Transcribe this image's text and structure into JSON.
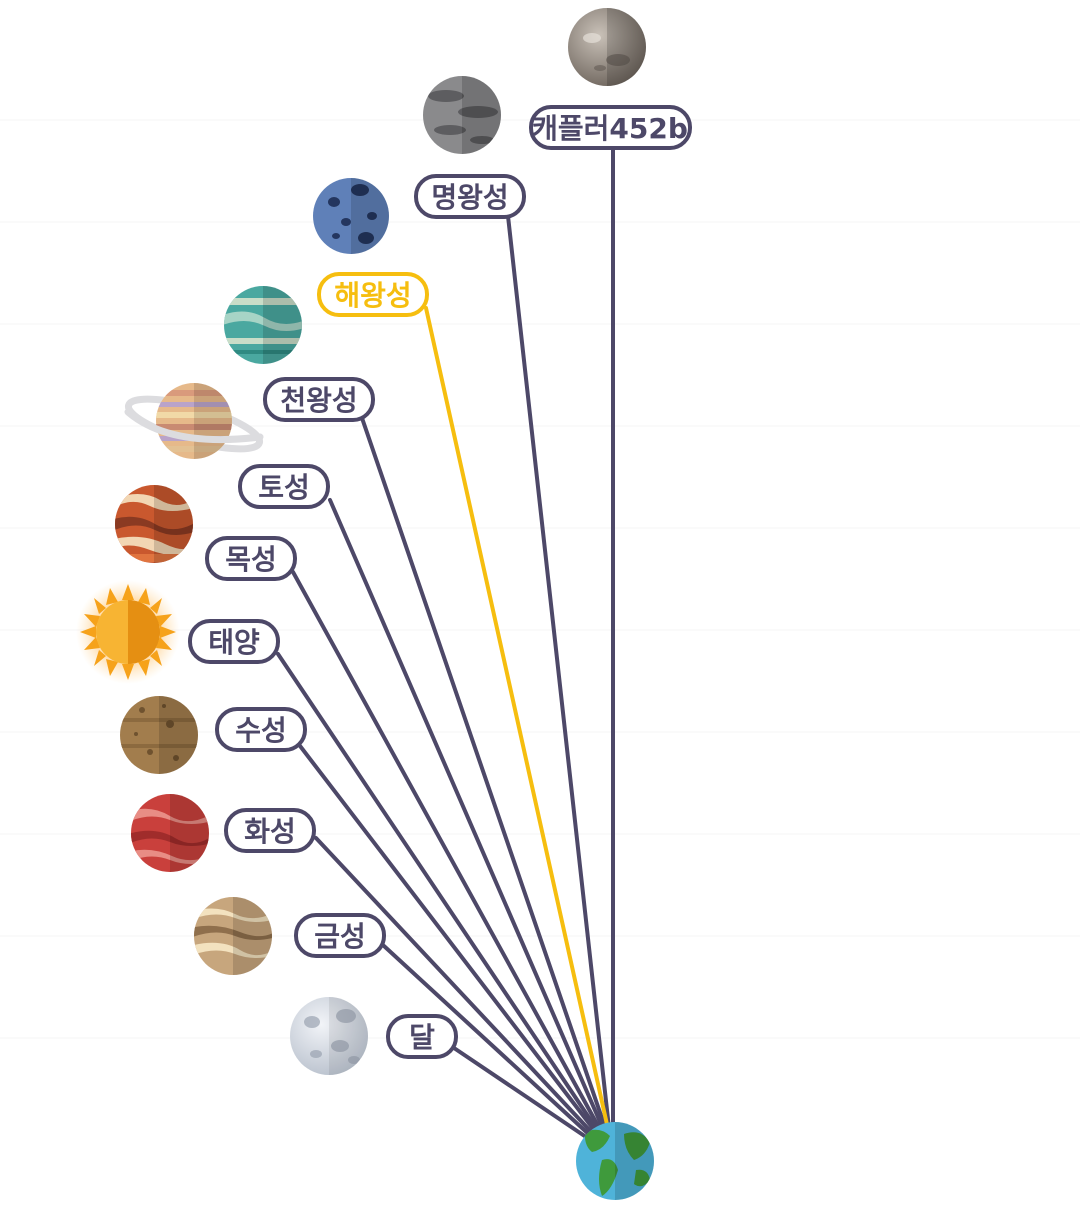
{
  "diagram": {
    "highlight_color": "#f6be0f",
    "line_color": "#4d4868",
    "hub": {
      "name": "earth-icon"
    },
    "bodies": [
      {
        "key": "kepler",
        "label": "캐플러452b",
        "icon": "kepler452b-icon",
        "highlighted": false
      },
      {
        "key": "pluto",
        "label": "명왕성",
        "icon": "pluto-icon",
        "highlighted": false
      },
      {
        "key": "neptune",
        "label": "해왕성",
        "icon": "neptune-icon",
        "highlighted": true
      },
      {
        "key": "uranus",
        "label": "천왕성",
        "icon": "uranus-icon",
        "highlighted": false
      },
      {
        "key": "saturn",
        "label": "토성",
        "icon": "saturn-icon",
        "highlighted": false
      },
      {
        "key": "jupiter",
        "label": "목성",
        "icon": "jupiter-icon",
        "highlighted": false
      },
      {
        "key": "sun",
        "label": "태양",
        "icon": "sun-icon",
        "highlighted": false
      },
      {
        "key": "mercury",
        "label": "수성",
        "icon": "mercury-icon",
        "highlighted": false
      },
      {
        "key": "mars",
        "label": "화성",
        "icon": "mars-icon",
        "highlighted": false
      },
      {
        "key": "venus",
        "label": "금성",
        "icon": "venus-icon",
        "highlighted": false
      },
      {
        "key": "moon",
        "label": "달",
        "icon": "moon-icon",
        "highlighted": false
      }
    ]
  }
}
